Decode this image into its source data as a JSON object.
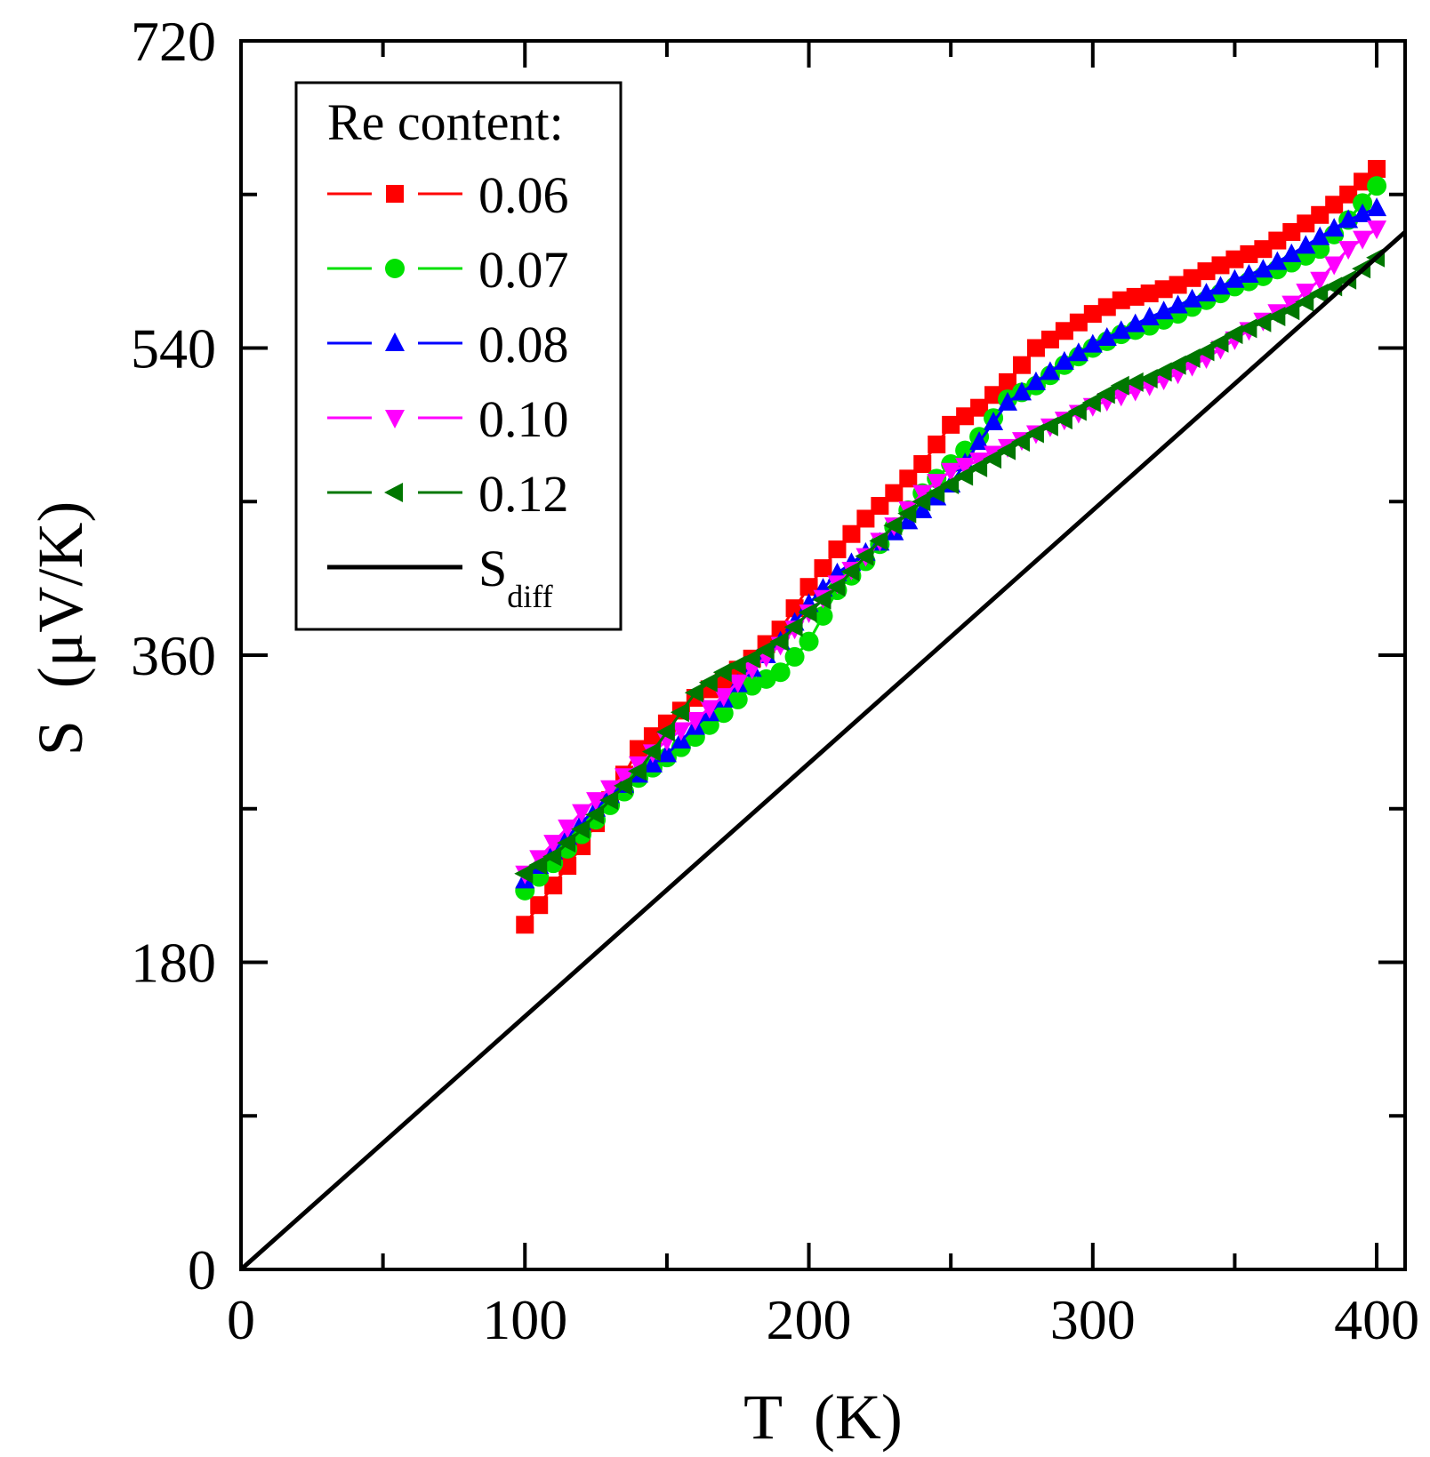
{
  "chart_data": {
    "type": "scatter",
    "title": "",
    "xlabel": "T  (K)",
    "ylabel": "S  (μV/K)",
    "xlim": [
      0,
      410
    ],
    "ylim": [
      0,
      720
    ],
    "xticks": [
      0,
      100,
      200,
      300,
      400
    ],
    "yticks": [
      0,
      180,
      360,
      540,
      720
    ],
    "legend_title": "Re content:",
    "legend_position": "top-left",
    "series": [
      {
        "name": "0.06",
        "color": "#ff0000",
        "marker": "square",
        "x": [
          100,
          110,
          120,
          130,
          140,
          150,
          160,
          170,
          180,
          190,
          200,
          210,
          220,
          230,
          240,
          250,
          260,
          270,
          280,
          290,
          300,
          310,
          320,
          330,
          340,
          350,
          360,
          370,
          380,
          390,
          400
        ],
        "y": [
          202,
          225,
          248,
          275,
          305,
          320,
          335,
          345,
          358,
          375,
          400,
          422,
          440,
          455,
          472,
          495,
          505,
          520,
          540,
          550,
          560,
          568,
          572,
          577,
          585,
          592,
          598,
          608,
          618,
          630,
          645
        ]
      },
      {
        "name": "0.07",
        "color": "#00e000",
        "marker": "circle",
        "x": [
          100,
          110,
          120,
          130,
          140,
          150,
          160,
          170,
          180,
          190,
          200,
          210,
          220,
          230,
          240,
          250,
          260,
          270,
          280,
          290,
          300,
          310,
          320,
          330,
          340,
          350,
          360,
          370,
          380,
          390,
          400
        ],
        "y": [
          222,
          238,
          255,
          272,
          288,
          300,
          312,
          326,
          342,
          350,
          368,
          398,
          415,
          435,
          455,
          472,
          488,
          510,
          518,
          530,
          540,
          548,
          553,
          560,
          568,
          576,
          582,
          590,
          598,
          615,
          635
        ]
      },
      {
        "name": "0.08",
        "color": "#0000ff",
        "marker": "triangle-up",
        "x": [
          100,
          110,
          120,
          130,
          140,
          150,
          160,
          170,
          180,
          190,
          200,
          210,
          220,
          230,
          240,
          250,
          260,
          270,
          280,
          290,
          300,
          310,
          320,
          330,
          340,
          350,
          360,
          370,
          380,
          390,
          400
        ],
        "y": [
          228,
          245,
          262,
          278,
          290,
          302,
          318,
          334,
          352,
          368,
          390,
          408,
          420,
          432,
          445,
          460,
          485,
          508,
          520,
          532,
          542,
          550,
          558,
          565,
          572,
          580,
          586,
          595,
          605,
          615,
          622
        ]
      },
      {
        "name": "0.10",
        "color": "#ff00ff",
        "marker": "triangle-down",
        "x": [
          100,
          110,
          120,
          130,
          140,
          150,
          160,
          170,
          180,
          190,
          200,
          210,
          220,
          230,
          240,
          250,
          260,
          270,
          280,
          290,
          300,
          310,
          320,
          330,
          340,
          350,
          360,
          370,
          380,
          390,
          400
        ],
        "y": [
          232,
          250,
          268,
          282,
          296,
          310,
          322,
          336,
          352,
          366,
          385,
          402,
          418,
          436,
          455,
          468,
          474,
          482,
          490,
          498,
          506,
          512,
          518,
          525,
          534,
          545,
          556,
          566,
          580,
          598,
          610
        ]
      },
      {
        "name": "0.12",
        "color": "#007700",
        "marker": "triangle-left",
        "x": [
          100,
          110,
          120,
          130,
          140,
          150,
          160,
          170,
          180,
          190,
          200,
          210,
          220,
          230,
          240,
          250,
          260,
          270,
          280,
          290,
          300,
          310,
          320,
          330,
          340,
          350,
          360,
          370,
          380,
          390,
          400
        ],
        "y": [
          232,
          242,
          258,
          275,
          292,
          315,
          338,
          350,
          358,
          368,
          385,
          400,
          418,
          436,
          450,
          460,
          470,
          480,
          490,
          498,
          508,
          518,
          522,
          530,
          538,
          548,
          555,
          562,
          572,
          580,
          593
        ]
      },
      {
        "name": "S",
        "name_sub": "diff",
        "color": "#000000",
        "marker": "none",
        "style": "line",
        "x": [
          0,
          410
        ],
        "y": [
          0,
          608
        ]
      }
    ]
  }
}
